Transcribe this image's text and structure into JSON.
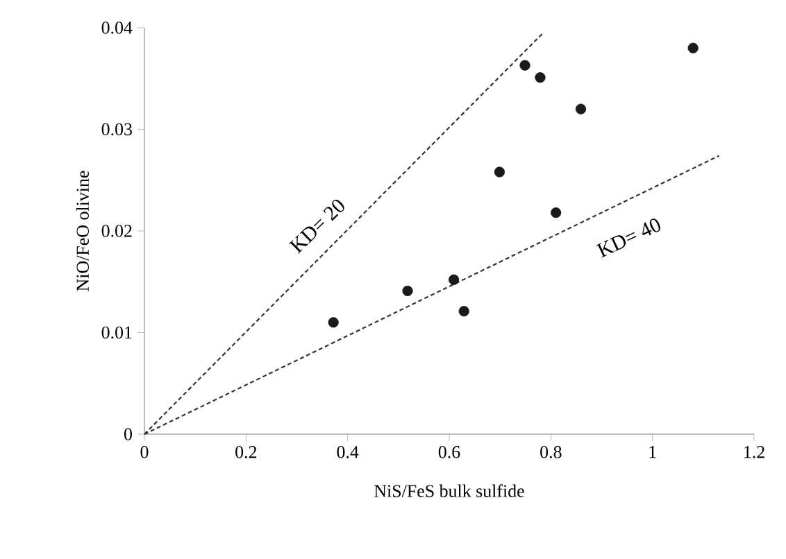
{
  "chart_data": {
    "type": "scatter",
    "xlabel": "NiS/FeS bulk sulfide",
    "ylabel": "NiO/FeO olivine",
    "xlim": [
      0,
      1.2
    ],
    "ylim": [
      0,
      0.04
    ],
    "xticks": [
      0,
      0.2,
      0.4,
      0.6,
      0.8,
      1,
      1.2
    ],
    "yticks": [
      0,
      0.01,
      0.02,
      0.03,
      0.04
    ],
    "grid": false,
    "series": [
      {
        "color": "#1a1a1a",
        "marker": "circle",
        "x": [
          0.372,
          0.518,
          0.609,
          0.629,
          0.699,
          0.749,
          0.779,
          0.81,
          0.859,
          1.08
        ],
        "values": [
          0.011,
          0.0141,
          0.0152,
          0.0121,
          0.0258,
          0.0363,
          0.0351,
          0.0218,
          0.032,
          0.038
        ]
      },
      {
        "type": "line",
        "color": "#333333",
        "marker": "none",
        "line_style": "dashed",
        "x": [
          0,
          0.783
        ],
        "values": [
          0,
          0.0394
        ]
      },
      {
        "type": "line",
        "color": "#333333",
        "marker": "none",
        "line_style": "dashed",
        "x": [
          0,
          1.131
        ],
        "values": [
          0,
          0.0274
        ]
      }
    ],
    "annotations": [
      "KD= 20",
      "KD= 40"
    ]
  }
}
